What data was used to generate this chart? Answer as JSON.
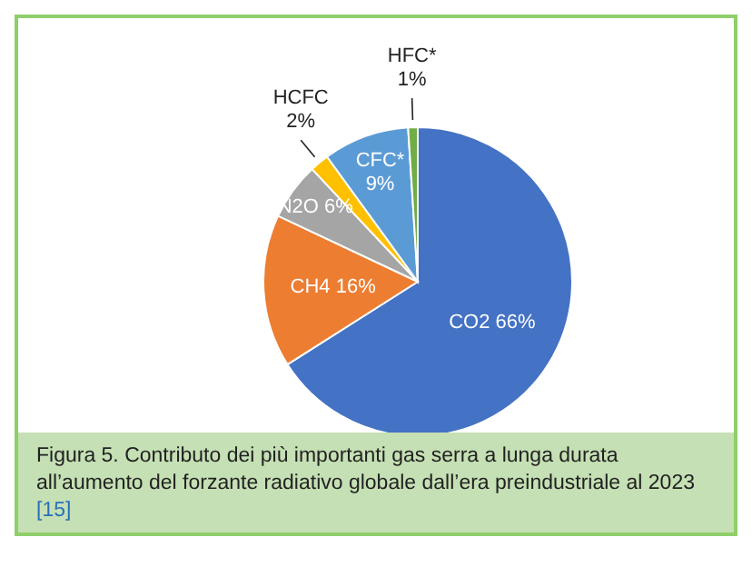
{
  "chart_data": {
    "type": "pie",
    "title": "Figura 5. Contributo dei più importanti gas serra a lunga durata all’aumento del forzante radiativo globale dall’era preindustriale al 2023",
    "annotations": [
      "[15]"
    ],
    "categories": [
      "CO2",
      "CH4",
      "N2O",
      "HCFC",
      "CFC*",
      "HFC*"
    ],
    "values": [
      66,
      16,
      6,
      2,
      9,
      1
    ],
    "value_labels": [
      "66%",
      "16%",
      "6%",
      "2%",
      "9%",
      "1%"
    ],
    "colors": [
      "#4472c4",
      "#ed7d31",
      "#a5a5a5",
      "#ffc000",
      "#5b9bd5",
      "#70ad47"
    ],
    "legend": false
  }
}
